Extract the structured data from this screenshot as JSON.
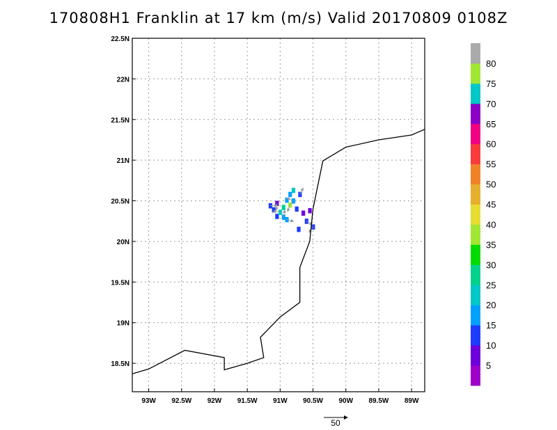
{
  "chart_data": {
    "type": "heatmap",
    "title": "170808H1 Franklin at 17 km (m/s) Valid 20170809 0108Z",
    "xlim": [
      -93.25,
      -88.8
    ],
    "ylim": [
      18.15,
      22.5
    ],
    "x_ticks": [
      {
        "value": -93.0,
        "label": "93W"
      },
      {
        "value": -92.5,
        "label": "92.5W"
      },
      {
        "value": -92.0,
        "label": "92W"
      },
      {
        "value": -91.5,
        "label": "91.5W"
      },
      {
        "value": -91.0,
        "label": "91W"
      },
      {
        "value": -90.5,
        "label": "90.5W"
      },
      {
        "value": -90.0,
        "label": "90W"
      },
      {
        "value": -89.5,
        "label": "89.5W"
      },
      {
        "value": -89.0,
        "label": "89W"
      }
    ],
    "y_ticks": [
      {
        "value": 18.5,
        "label": "18.5N"
      },
      {
        "value": 19.0,
        "label": "19N"
      },
      {
        "value": 19.5,
        "label": "19.5N"
      },
      {
        "value": 20.0,
        "label": "20N"
      },
      {
        "value": 20.5,
        "label": "20.5N"
      },
      {
        "value": 21.0,
        "label": "21N"
      },
      {
        "value": 21.5,
        "label": "21.5N"
      },
      {
        "value": 22.0,
        "label": "22N"
      },
      {
        "value": 22.5,
        "label": "22.5N"
      }
    ],
    "grid": true,
    "colorbar": {
      "labels": [
        "5",
        "10",
        "15",
        "20",
        "25",
        "30",
        "35",
        "40",
        "45",
        "50",
        "55",
        "60",
        "65",
        "70",
        "75",
        "80"
      ],
      "colors": [
        "#a000c8",
        "#6e00dc",
        "#1e3cff",
        "#00a0ff",
        "#00c8c8",
        "#00d28c",
        "#00dc00",
        "#a0e632",
        "#e6dc32",
        "#e6af2d",
        "#f08228",
        "#fa3c3c",
        "#f00082",
        "#8c00c8",
        "#00c8c8",
        "#a0e632",
        "#aaaaaa"
      ]
    },
    "coastline": [
      [
        -93.25,
        18.37
      ],
      [
        -93.0,
        18.43
      ],
      [
        -92.45,
        18.66
      ],
      [
        -91.85,
        18.57
      ],
      [
        -91.85,
        18.42
      ],
      [
        -91.5,
        18.5
      ],
      [
        -91.25,
        18.57
      ],
      [
        -91.3,
        18.82
      ],
      [
        -91.0,
        19.07
      ],
      [
        -90.7,
        19.25
      ],
      [
        -90.7,
        19.68
      ],
      [
        -90.55,
        20.0
      ],
      [
        -90.5,
        20.4
      ],
      [
        -90.35,
        20.99
      ],
      [
        -90.0,
        21.16
      ],
      [
        -89.5,
        21.25
      ],
      [
        -89.0,
        21.31
      ],
      [
        -88.8,
        21.38
      ]
    ],
    "wind_cells": [
      {
        "lon": -91.15,
        "lat": 20.44,
        "speed": 10
      },
      {
        "lon": -91.1,
        "lat": 20.39,
        "speed": 10
      },
      {
        "lon": -91.05,
        "lat": 20.47,
        "speed": 5
      },
      {
        "lon": -91.05,
        "lat": 20.31,
        "speed": 10
      },
      {
        "lon": -91.0,
        "lat": 20.36,
        "speed": 20
      },
      {
        "lon": -90.95,
        "lat": 20.42,
        "speed": 25
      },
      {
        "lon": -90.95,
        "lat": 20.3,
        "speed": 15
      },
      {
        "lon": -90.9,
        "lat": 20.51,
        "speed": 15
      },
      {
        "lon": -90.9,
        "lat": 20.27,
        "speed": 15
      },
      {
        "lon": -90.85,
        "lat": 20.58,
        "speed": 15
      },
      {
        "lon": -90.85,
        "lat": 20.45,
        "speed": 35
      },
      {
        "lon": -90.8,
        "lat": 20.63,
        "speed": 20
      },
      {
        "lon": -90.8,
        "lat": 20.5,
        "speed": 15
      },
      {
        "lon": -90.75,
        "lat": 20.4,
        "speed": 10
      },
      {
        "lon": -90.7,
        "lat": 20.58,
        "speed": 10
      },
      {
        "lon": -90.65,
        "lat": 20.35,
        "speed": 5
      },
      {
        "lon": -90.6,
        "lat": 20.25,
        "speed": 10
      },
      {
        "lon": -90.55,
        "lat": 20.38,
        "speed": 5
      },
      {
        "lon": -90.5,
        "lat": 20.18,
        "speed": 10
      },
      {
        "lon": -90.72,
        "lat": 20.15,
        "speed": 10
      }
    ],
    "vector_reference": {
      "value": "50",
      "units": "m/s"
    }
  }
}
